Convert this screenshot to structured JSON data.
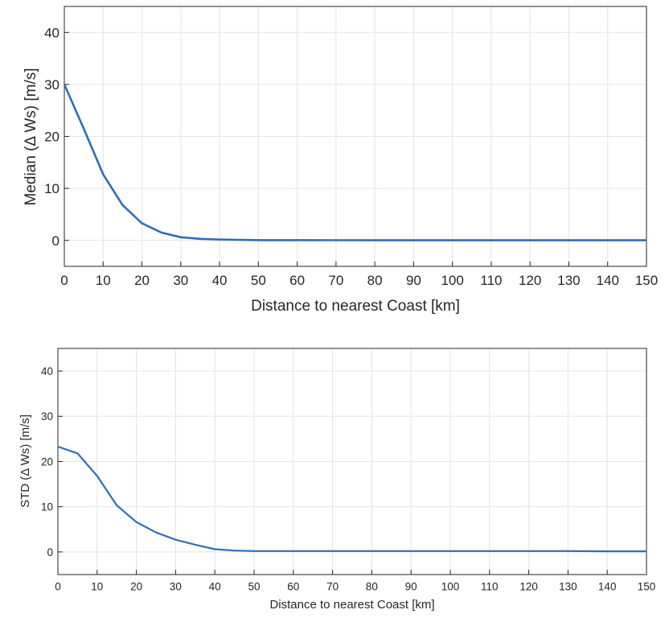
{
  "chart_data": [
    {
      "type": "line",
      "xlabel": "Distance to nearest Coast [km]",
      "ylabel": "Median (Δ Ws) [m/s]",
      "xlim": [
        0,
        150
      ],
      "ylim": [
        -5,
        45
      ],
      "xticks": [
        "0",
        "10",
        "20",
        "30",
        "40",
        "50",
        "60",
        "70",
        "80",
        "90",
        "100",
        "110",
        "120",
        "130",
        "140",
        "150"
      ],
      "yticks": [
        "0",
        "10",
        "20",
        "30",
        "40"
      ],
      "grid": true,
      "series_color": "#2e6fb5",
      "series": [
        {
          "x": [
            0,
            5,
            10,
            15,
            20,
            25,
            30,
            35,
            40,
            45,
            50,
            60,
            70,
            80,
            90,
            100,
            110,
            120,
            130,
            140,
            150
          ],
          "y": [
            30,
            21.5,
            12.7,
            6.8,
            3.3,
            1.5,
            0.6,
            0.3,
            0.15,
            0.1,
            0.05,
            0.05,
            0.03,
            0.02,
            0.02,
            0.01,
            0.01,
            0.01,
            0.01,
            0.01,
            0.01
          ]
        }
      ]
    },
    {
      "type": "line",
      "xlabel": "Distance to nearest Coast [km]",
      "ylabel": "STD (Δ Ws) [m/s]",
      "xlim": [
        0,
        150
      ],
      "ylim": [
        -5,
        45
      ],
      "xticks": [
        "0",
        "10",
        "20",
        "30",
        "40",
        "50",
        "60",
        "70",
        "80",
        "90",
        "100",
        "110",
        "120",
        "130",
        "140",
        "150"
      ],
      "yticks": [
        "0",
        "10",
        "20",
        "30",
        "40"
      ],
      "grid": true,
      "series_color": "#2e6fb5",
      "series": [
        {
          "x": [
            0,
            5,
            10,
            15,
            20,
            25,
            30,
            35,
            40,
            45,
            50,
            60,
            70,
            80,
            90,
            100,
            110,
            120,
            130,
            140,
            150
          ],
          "y": [
            23.3,
            21.8,
            16.8,
            10.3,
            6.6,
            4.3,
            2.7,
            1.6,
            0.6,
            0.3,
            0.2,
            0.2,
            0.2,
            0.2,
            0.2,
            0.2,
            0.2,
            0.2,
            0.2,
            0.15,
            0.15
          ]
        }
      ]
    }
  ]
}
